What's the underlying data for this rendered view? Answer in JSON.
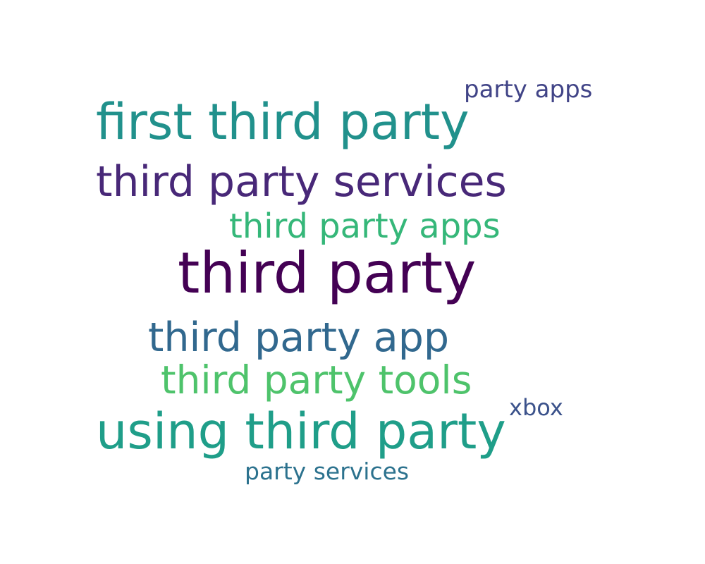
{
  "words": [
    {
      "text": "party apps",
      "color": "#414487"
    },
    {
      "text": "first third party",
      "color": "#21918c"
    },
    {
      "text": "third party services",
      "color": "#482878"
    },
    {
      "text": "third party apps",
      "color": "#35b779"
    },
    {
      "text": "third party",
      "color": "#440154"
    },
    {
      "text": "third party app",
      "color": "#31688e"
    },
    {
      "text": "third party tools",
      "color": "#4ec36b"
    },
    {
      "text": "xbox",
      "color": "#3b528b"
    },
    {
      "text": "using third party",
      "color": "#1f9e89"
    },
    {
      "text": "party services",
      "color": "#2c728e"
    }
  ]
}
